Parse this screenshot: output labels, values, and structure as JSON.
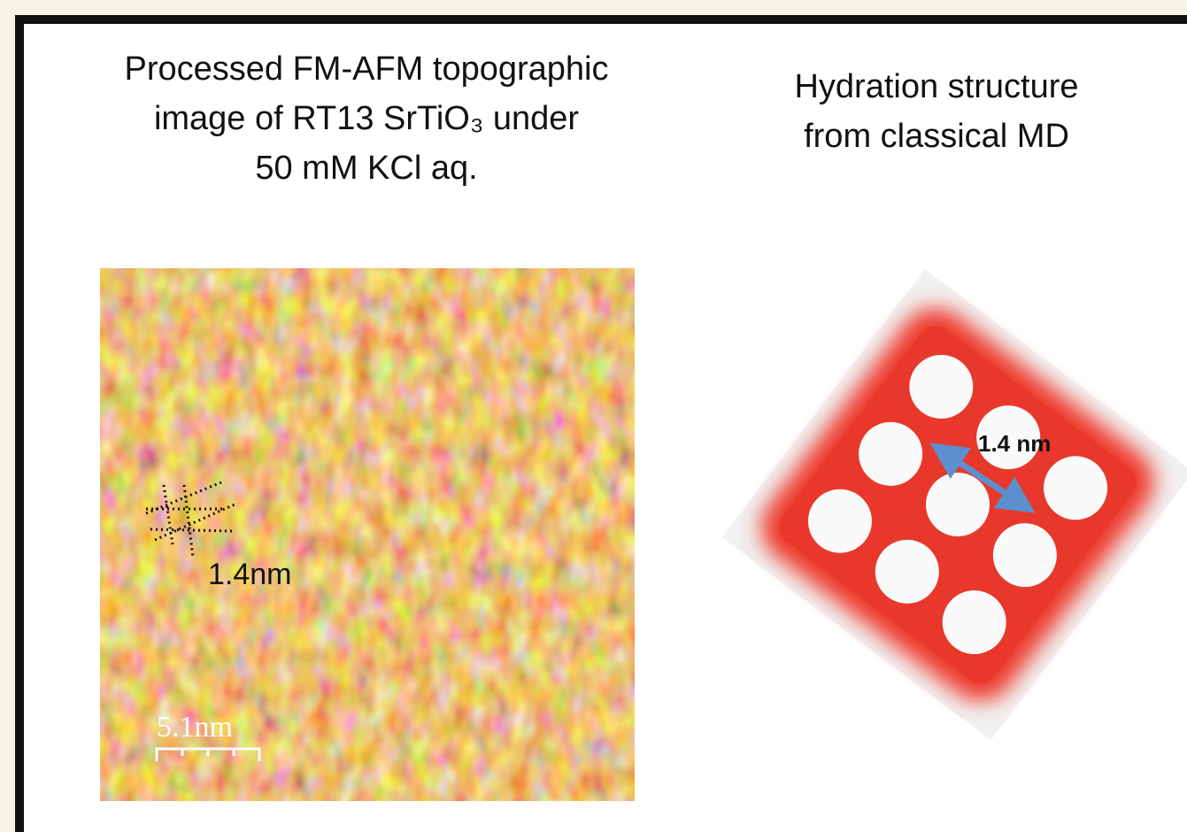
{
  "left_panel": {
    "title_lines": [
      "Processed FM-AFM topographic",
      "image of RT13 SrTiO₃ under",
      "50 mM KCl aq."
    ],
    "spacing_label": "1.4nm",
    "scale_label": "5.1nm"
  },
  "right_panel": {
    "title_lines": [
      "Hydration structure",
      "from classical MD"
    ],
    "spacing_label": "1.4 nm"
  }
}
